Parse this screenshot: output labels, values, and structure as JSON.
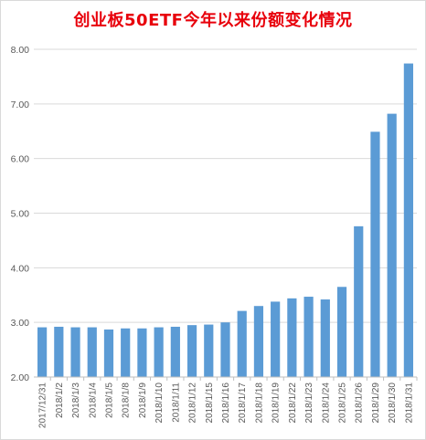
{
  "chart_data": {
    "type": "bar",
    "title": "创业板50ETF今年以来份额变化情况",
    "xlabel": "",
    "ylabel": "",
    "ylim": [
      2.0,
      8.0
    ],
    "yticks": [
      "2.00",
      "3.00",
      "4.00",
      "5.00",
      "6.00",
      "7.00",
      "8.00"
    ],
    "grid": true,
    "bar_color": "#5b9bd5",
    "categories": [
      "2017/12/31",
      "2018/1/2",
      "2018/1/3",
      "2018/1/4",
      "2018/1/5",
      "2018/1/8",
      "2018/1/9",
      "2018/1/10",
      "2018/1/11",
      "2018/1/12",
      "2018/1/15",
      "2018/1/16",
      "2018/1/17",
      "2018/1/18",
      "2018/1/19",
      "2018/1/22",
      "2018/1/23",
      "2018/1/24",
      "2018/1/25",
      "2018/1/26",
      "2018/1/29",
      "2018/1/30",
      "2018/1/31"
    ],
    "values": [
      2.91,
      2.92,
      2.91,
      2.91,
      2.87,
      2.89,
      2.89,
      2.91,
      2.92,
      2.95,
      2.96,
      3.0,
      3.21,
      3.3,
      3.38,
      3.44,
      3.47,
      3.42,
      3.65,
      4.76,
      6.49,
      6.82,
      7.74
    ]
  }
}
